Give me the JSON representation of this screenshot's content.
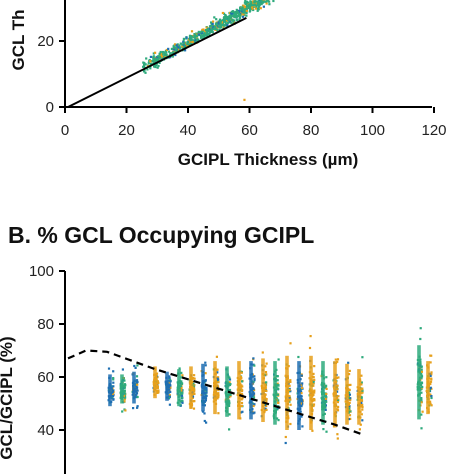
{
  "colors": {
    "blue": "#1f6fb2",
    "green": "#2eaa7c",
    "orange": "#e6a01c",
    "fit_line": "#000000",
    "axis": "#000000"
  },
  "panel_a": {
    "ylabel": "GCL Th",
    "xlabel": "GCIPL Thickness (µm)",
    "x_ticks": [
      "0",
      "20",
      "40",
      "60",
      "80",
      "100",
      "120"
    ],
    "y_ticks": [
      "0",
      "20"
    ]
  },
  "panel_b": {
    "title": "B. % GCL Occupying GCIPL",
    "ylabel": "GCL/GCIPL (%)",
    "y_ticks": [
      "40",
      "60",
      "80",
      "100"
    ]
  },
  "chart_data": [
    {
      "type": "scatter",
      "title": "",
      "xlabel": "GCIPL Thickness (µm)",
      "ylabel": "GCL Th",
      "xlim": [
        0,
        130
      ],
      "ylim": [
        0,
        27
      ],
      "grid": false,
      "series": [
        {
          "color": "green",
          "cloud": {
            "x_range": [
              25,
              92
            ],
            "fit_slope": 0.53,
            "fit_intercept": -1,
            "spread": 3
          }
        },
        {
          "color": "orange",
          "cloud": {
            "x_range": [
              25,
              92
            ],
            "fit_slope": 0.53,
            "fit_intercept": -1,
            "spread": 3.5
          }
        },
        {
          "color": "blue",
          "cloud": {
            "x_range": [
              25,
              92
            ],
            "fit_slope": 0.53,
            "fit_intercept": -1,
            "spread": 3
          }
        }
      ],
      "fit_line": {
        "x": [
          1,
          59
        ],
        "y": [
          0,
          27
        ]
      }
    },
    {
      "type": "scatter",
      "title": "B. % GCL Occupying GCIPL",
      "xlabel": "",
      "ylabel": "GCL/GCIPL (%)",
      "ylim": [
        35,
        100
      ],
      "grid": false,
      "strips": [
        {
          "center": 15,
          "low": 49,
          "high": 61,
          "color": "blue"
        },
        {
          "center": 19,
          "low": 50,
          "high": 61,
          "color": "green"
        },
        {
          "center": 23,
          "low": 50,
          "high": 62,
          "color": "blue"
        },
        {
          "center": 30,
          "low": 52,
          "high": 64,
          "color": "orange"
        },
        {
          "center": 34,
          "low": 51,
          "high": 62,
          "color": "blue"
        },
        {
          "center": 38,
          "low": 49,
          "high": 63,
          "color": "green"
        },
        {
          "center": 42,
          "low": 48,
          "high": 64,
          "color": "orange"
        },
        {
          "center": 46,
          "low": 47,
          "high": 65,
          "color": "blue"
        },
        {
          "center": 50,
          "low": 46,
          "high": 66,
          "color": "orange"
        },
        {
          "center": 54,
          "low": 45,
          "high": 64,
          "color": "green"
        },
        {
          "center": 58,
          "low": 44,
          "high": 66,
          "color": "orange"
        },
        {
          "center": 62,
          "low": 44,
          "high": 66,
          "color": "blue"
        },
        {
          "center": 66,
          "low": 43,
          "high": 67,
          "color": "orange"
        },
        {
          "center": 70,
          "low": 42,
          "high": 66,
          "color": "green"
        },
        {
          "center": 74,
          "low": 40,
          "high": 68,
          "color": "orange"
        },
        {
          "center": 78,
          "low": 40,
          "high": 66,
          "color": "blue"
        },
        {
          "center": 82,
          "low": 40,
          "high": 68,
          "color": "orange"
        },
        {
          "center": 86,
          "low": 42,
          "high": 66,
          "color": "green"
        },
        {
          "center": 90,
          "low": 41,
          "high": 66,
          "color": "orange"
        },
        {
          "center": 94,
          "low": 42,
          "high": 65,
          "color": "orange"
        },
        {
          "center": 98,
          "low": 42,
          "high": 63,
          "color": "orange"
        },
        {
          "center": 118,
          "low": 44,
          "high": 72,
          "color": "green"
        },
        {
          "center": 121,
          "low": 46,
          "high": 66,
          "color": "orange"
        }
      ],
      "trend_line": {
        "style": "dashed",
        "x": [
          1,
          7,
          14,
          30,
          50,
          70,
          90,
          100
        ],
        "y": [
          67,
          70,
          69.5,
          63,
          56,
          49,
          42,
          38
        ]
      }
    }
  ]
}
